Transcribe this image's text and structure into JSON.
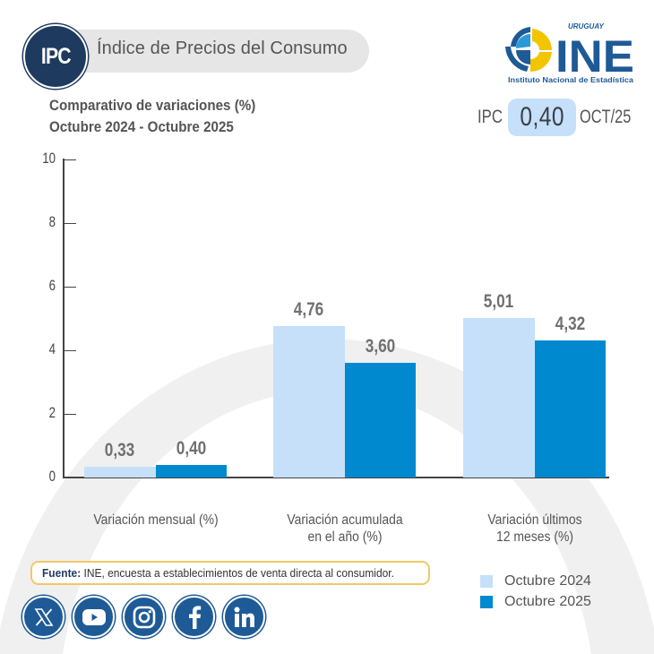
{
  "header": {
    "badge": "IPC",
    "title": "Índice de Precios del Consumo"
  },
  "logo": {
    "country": "URUGUAY",
    "acronym": "INE",
    "name": "Instituto Nacional de Estadística"
  },
  "chart_title": {
    "line1": "Comparativo de variaciones (%)",
    "line2": "Octubre 2024 - Octubre 2025"
  },
  "kpi": {
    "label": "IPC",
    "value": "0,40",
    "period": "OCT/25"
  },
  "colors": {
    "octubre_2024": "#c6e0fa",
    "octubre_2025": "#0089cf",
    "badge": "#1f3a5f",
    "social": "#1e5a96",
    "source_border": "#f2c766"
  },
  "chart_data": {
    "type": "bar",
    "title": "Comparativo de variaciones (%) Octubre 2024 - Octubre 2025",
    "xlabel": "",
    "ylabel": "",
    "ylim": [
      0,
      10
    ],
    "yticks": [
      "0",
      "2",
      "4",
      "6",
      "8",
      "10"
    ],
    "categories": [
      "Variación mensual (%)",
      "Variación acumulada en el año (%)",
      "Variación últimos 12 meses (%)"
    ],
    "category_lines": [
      [
        "Variación mensual (%)"
      ],
      [
        "Variación acumulada",
        "en el año (%)"
      ],
      [
        "Variación últimos",
        "12 meses (%)"
      ]
    ],
    "series": [
      {
        "name": "Octubre 2024",
        "values": [
          0.33,
          4.76,
          5.01
        ],
        "labels": [
          "0,33",
          "4,76",
          "5,01"
        ]
      },
      {
        "name": "Octubre 2025",
        "values": [
          0.4,
          3.6,
          4.32
        ],
        "labels": [
          "0,40",
          "3,60",
          "4,32"
        ]
      }
    ],
    "grid": false,
    "legend_position": "bottom-right"
  },
  "source": {
    "label": "Fuente:",
    "text": " INE, encuesta a establecimientos de venta directa al consumidor."
  },
  "legend": [
    {
      "label": "Octubre 2024"
    },
    {
      "label": "Octubre 2025"
    }
  ],
  "social": [
    {
      "name": "x-twitter"
    },
    {
      "name": "youtube"
    },
    {
      "name": "instagram"
    },
    {
      "name": "facebook"
    },
    {
      "name": "linkedin"
    }
  ]
}
